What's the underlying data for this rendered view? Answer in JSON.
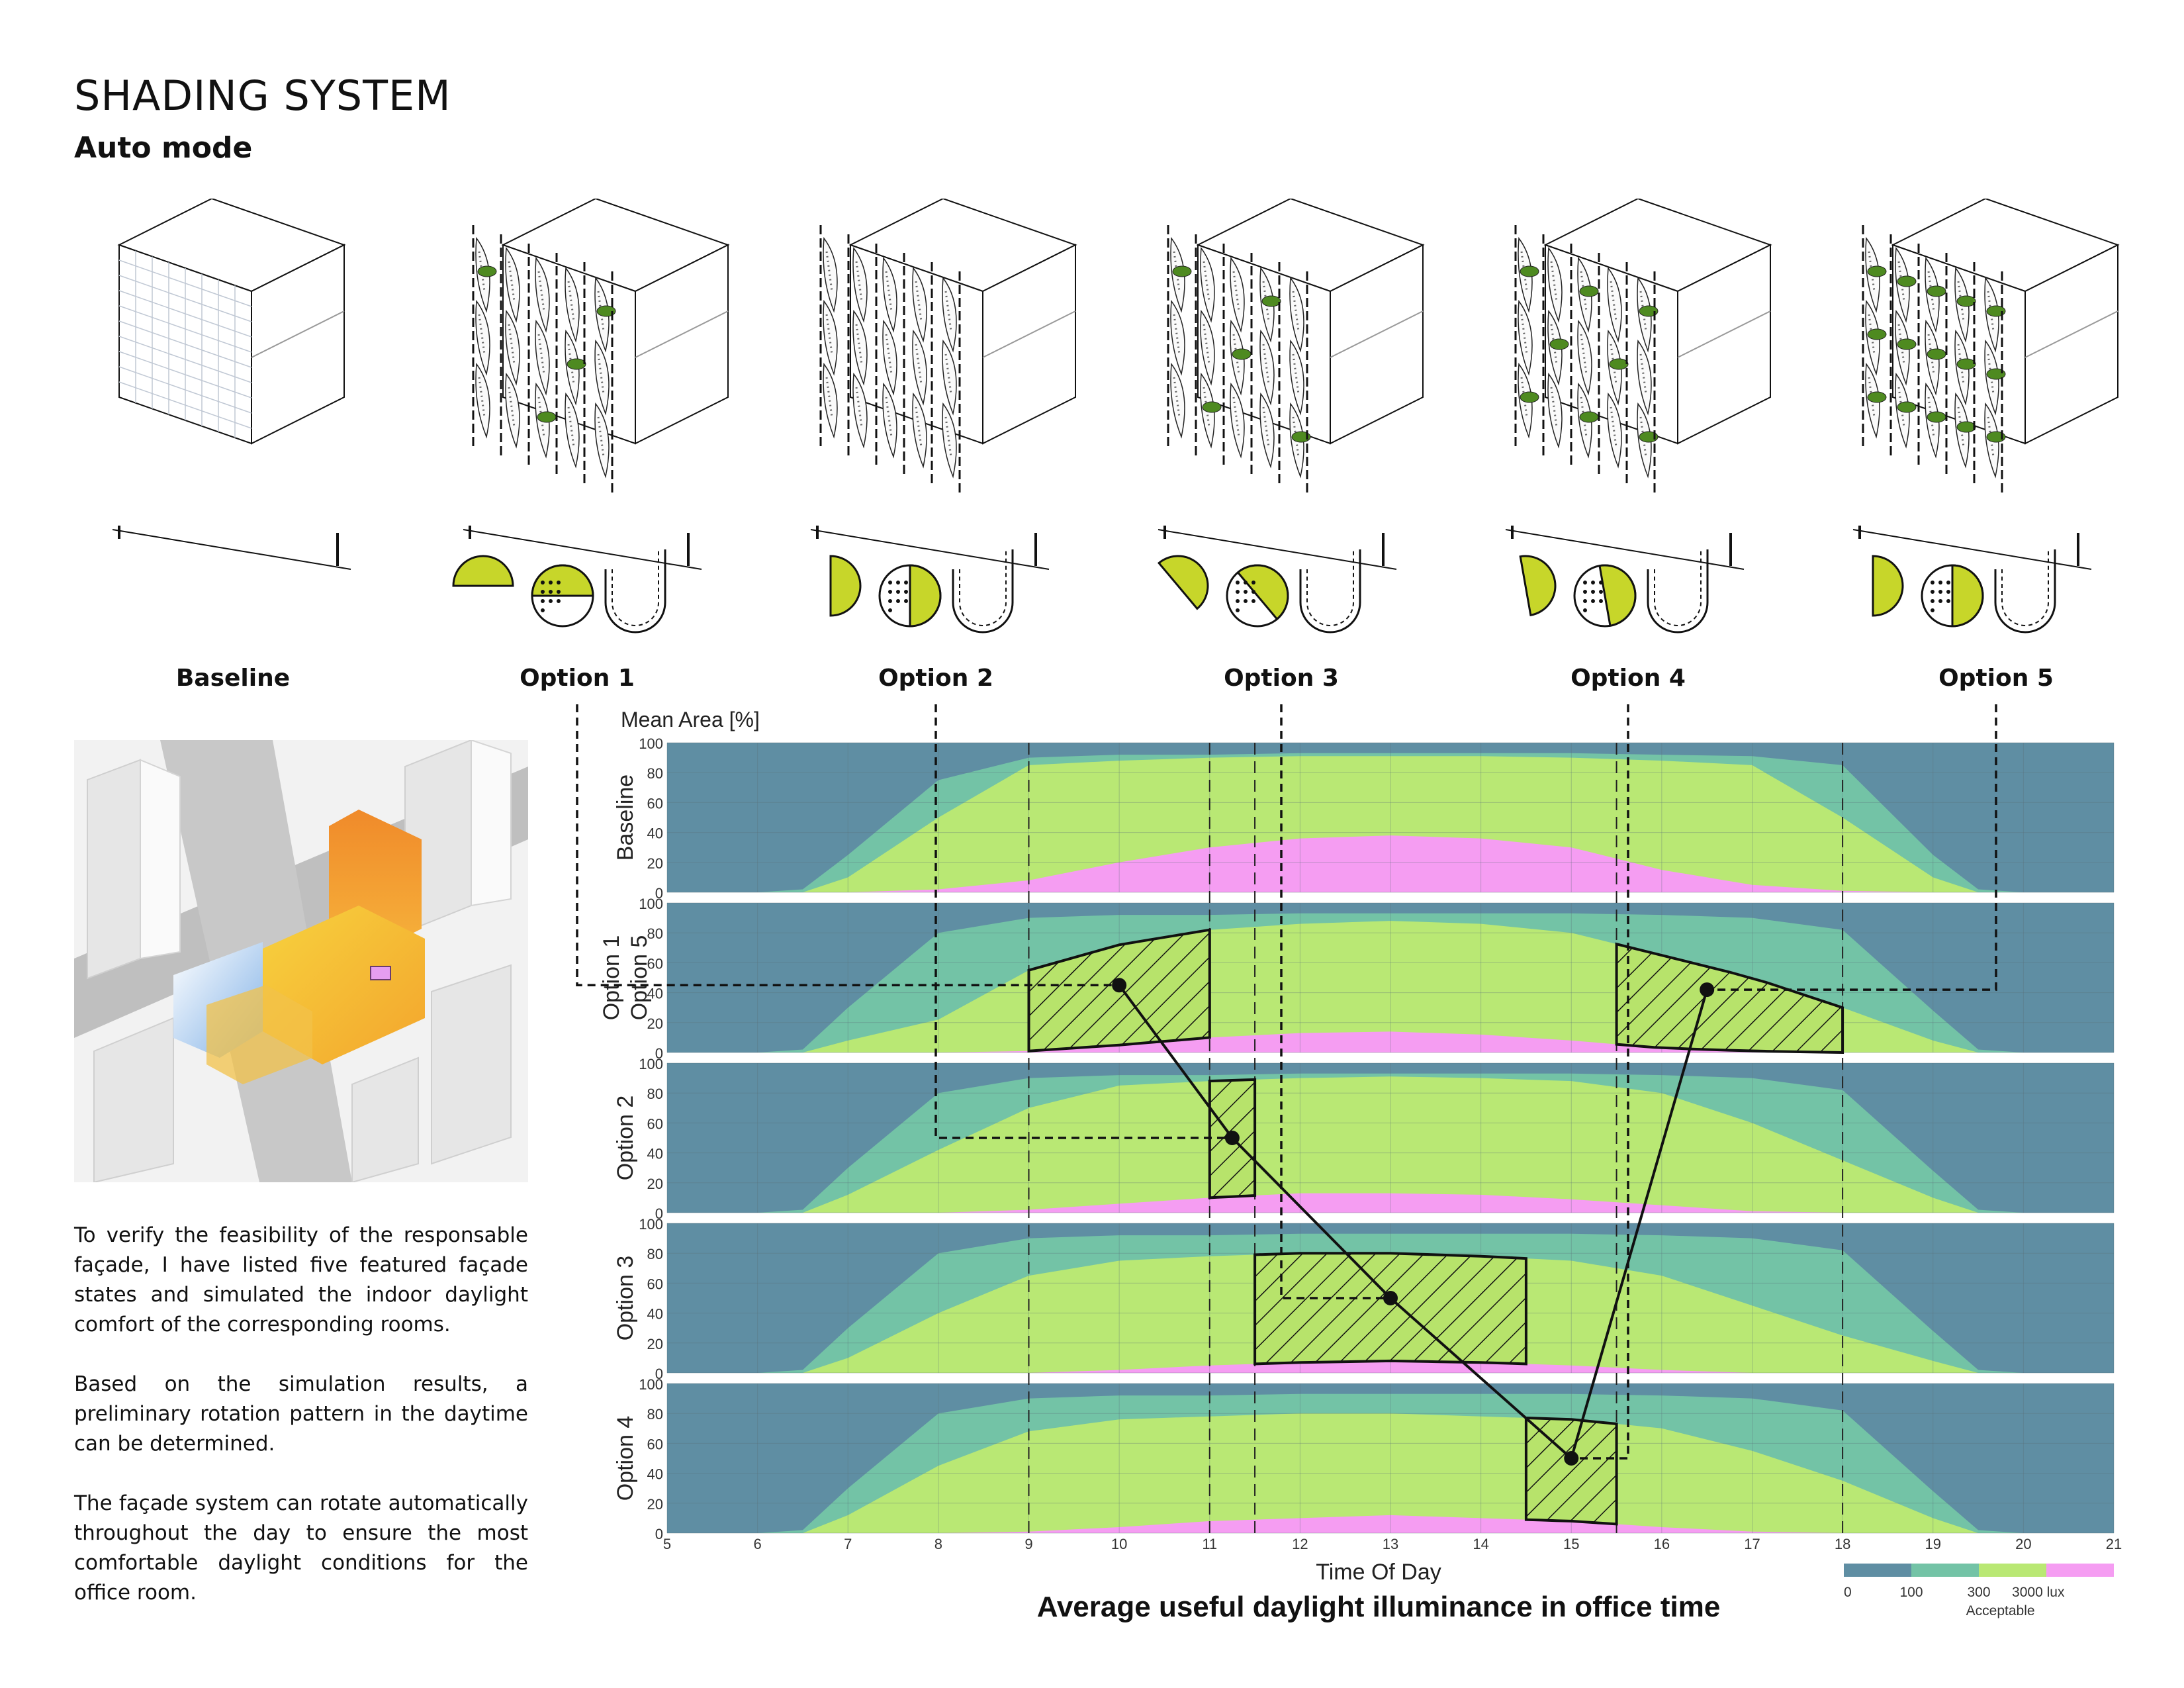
{
  "header": {
    "title": "SHADING SYSTEM",
    "subtitle": "Auto mode"
  },
  "options": [
    {
      "label": "Baseline"
    },
    {
      "label": "Option 1"
    },
    {
      "label": "Option 2"
    },
    {
      "label": "Option 3"
    },
    {
      "label": "Option 4"
    },
    {
      "label": "Option 5"
    }
  ],
  "description": {
    "p1": "To verify the feasibility of the responsable façade, I have listed five featured façade states and simulated the indoor daylight comfort of the corresponding rooms.",
    "p2": "Based on the simulation results, a preliminary rotation pattern in the daytime can be determined.",
    "p3": "The façade system can rotate automatically throughout the day to ensure the most comfortable daylight conditions for the office room."
  },
  "colors": {
    "band_low": "#5f8ea3",
    "band_mid": "#73c3a6",
    "band_useful": "#b9e874",
    "band_high": "#f59df2",
    "highlight": "#b7e36b",
    "panel_green": "#c7d62a"
  },
  "chart_data": {
    "type": "area",
    "caption": "Average useful daylight illuminance in office time",
    "xlabel": "Time Of Day",
    "ylabel": "Mean Area [%]",
    "xlim": [
      5,
      21
    ],
    "ylim": [
      0,
      100
    ],
    "xticks": [
      5,
      6,
      7,
      8,
      9,
      10,
      11,
      12,
      13,
      14,
      15,
      16,
      17,
      18,
      19,
      20,
      21
    ],
    "yticks": [
      0,
      20,
      40,
      60,
      80,
      100
    ],
    "grid": true,
    "legend": {
      "ticks": [
        "0",
        "100",
        "300",
        "3000 lux"
      ],
      "note": "Acceptable"
    },
    "x": [
      5,
      6,
      6.5,
      7,
      8,
      9,
      10,
      11,
      12,
      13,
      14,
      15,
      16,
      17,
      18,
      19,
      19.5,
      20,
      21
    ],
    "panels": [
      {
        "name": "Baseline",
        "lower_100": [
          0,
          0,
          2,
          25,
          75,
          90,
          92,
          92,
          93,
          93,
          93,
          93,
          92,
          91,
          85,
          25,
          2,
          0,
          0
        ],
        "lower_300": [
          0,
          0,
          0,
          10,
          50,
          85,
          88,
          90,
          91,
          91,
          91,
          90,
          88,
          85,
          50,
          10,
          0,
          0,
          0
        ],
        "upper_3000": [
          0,
          0,
          0,
          0,
          2,
          8,
          20,
          30,
          36,
          38,
          36,
          30,
          15,
          5,
          1,
          0,
          0,
          0,
          0
        ]
      },
      {
        "name": "Option 1\nOption 5",
        "lower_100": [
          0,
          0,
          2,
          30,
          80,
          90,
          92,
          92,
          93,
          93,
          93,
          93,
          92,
          90,
          82,
          28,
          2,
          0,
          0
        ],
        "lower_300": [
          0,
          0,
          0,
          8,
          22,
          55,
          72,
          82,
          86,
          88,
          86,
          80,
          65,
          50,
          30,
          8,
          0,
          0,
          0
        ],
        "upper_3000": [
          0,
          0,
          0,
          0,
          0,
          1,
          5,
          10,
          13,
          14,
          12,
          8,
          3,
          1,
          0,
          0,
          0,
          0,
          0
        ]
      },
      {
        "name": "Option 2",
        "lower_100": [
          0,
          0,
          2,
          30,
          80,
          90,
          92,
          92,
          93,
          93,
          93,
          93,
          92,
          90,
          82,
          28,
          2,
          0,
          0
        ],
        "lower_300": [
          0,
          0,
          0,
          12,
          42,
          70,
          85,
          88,
          90,
          91,
          90,
          88,
          80,
          60,
          35,
          10,
          0,
          0,
          0
        ],
        "upper_3000": [
          0,
          0,
          0,
          0,
          0,
          2,
          6,
          10,
          13,
          13,
          12,
          9,
          5,
          1,
          0,
          0,
          0,
          0,
          0
        ]
      },
      {
        "name": "Option 3",
        "lower_100": [
          0,
          0,
          2,
          30,
          80,
          90,
          92,
          92,
          93,
          93,
          93,
          93,
          92,
          90,
          82,
          28,
          2,
          0,
          0
        ],
        "lower_300": [
          0,
          0,
          0,
          10,
          40,
          65,
          75,
          78,
          80,
          80,
          78,
          75,
          65,
          45,
          25,
          8,
          0,
          0,
          0
        ],
        "upper_3000": [
          0,
          0,
          0,
          0,
          0,
          0,
          2,
          5,
          7,
          8,
          7,
          5,
          2,
          0,
          0,
          0,
          0,
          0,
          0
        ]
      },
      {
        "name": "Option 4",
        "lower_100": [
          0,
          0,
          2,
          30,
          80,
          90,
          92,
          92,
          93,
          93,
          93,
          93,
          92,
          90,
          82,
          28,
          2,
          0,
          0
        ],
        "lower_300": [
          0,
          0,
          0,
          12,
          45,
          68,
          76,
          78,
          80,
          80,
          78,
          76,
          70,
          55,
          35,
          10,
          0,
          0,
          0
        ],
        "upper_3000": [
          0,
          0,
          0,
          0,
          0,
          1,
          4,
          8,
          10,
          12,
          10,
          8,
          4,
          1,
          0,
          0,
          0,
          0,
          0
        ]
      }
    ],
    "rotation_sequence": [
      {
        "option": "Option 1",
        "time": 10,
        "value": 45
      },
      {
        "option": "Option 2",
        "time": 11.25,
        "value": 50
      },
      {
        "option": "Option 3",
        "time": 13,
        "value": 50
      },
      {
        "option": "Option 4",
        "time": 15,
        "value": 50
      },
      {
        "option": "Option 5",
        "time": 16.5,
        "value": 42
      }
    ],
    "selected_windows": [
      {
        "panel": "Option 1\nOption 5",
        "from": 9,
        "to": 11
      },
      {
        "panel": "Option 2",
        "from": 11,
        "to": 11.5
      },
      {
        "panel": "Option 3",
        "from": 11.5,
        "to": 14.5
      },
      {
        "panel": "Option 4",
        "from": 14.5,
        "to": 15.5
      },
      {
        "panel": "Option 1\nOption 5",
        "from": 15.5,
        "to": 18
      }
    ]
  }
}
